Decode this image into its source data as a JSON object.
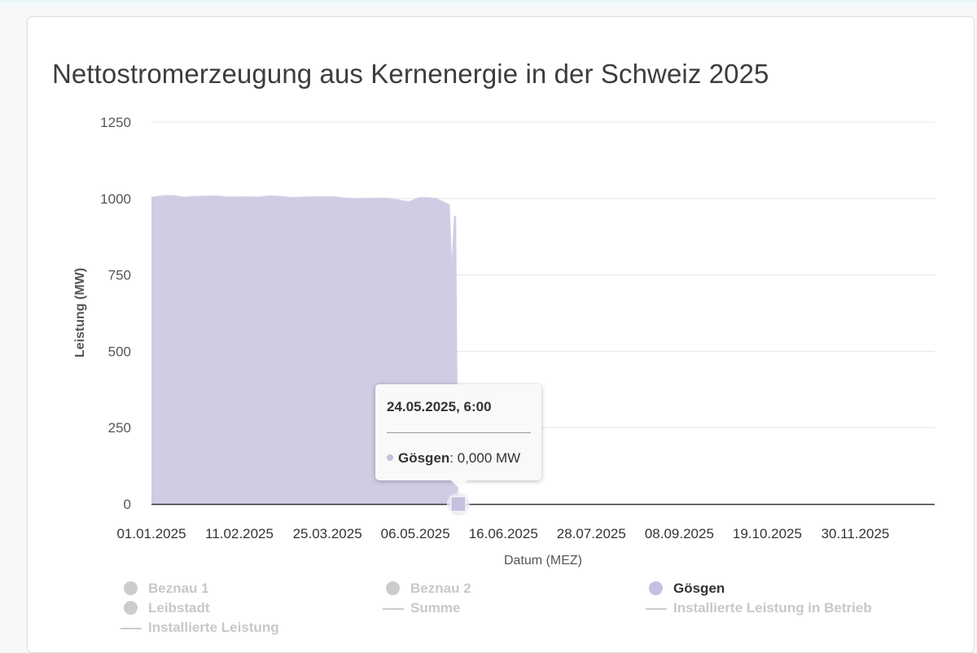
{
  "page": {
    "title": "Nettostromerzeugung aus Kernenergie in der Schweiz 2025"
  },
  "colors": {
    "goesgen": "#cfcce4",
    "goesgen_marker": "#c4c0de",
    "disabled": "#cccccc",
    "grid": "#e6e6e6",
    "axis": "#333333"
  },
  "chart_data": {
    "type": "area",
    "title": "Nettostromerzeugung aus Kernenergie in der Schweiz 2025",
    "xlabel": "Datum (MEZ)",
    "ylabel": "Leistung (MW)",
    "ylim": [
      0,
      1250
    ],
    "xlim": [
      "01.01.2025",
      "31.12.2025"
    ],
    "grid": true,
    "legend_position": "bottom",
    "y_ticks": [
      "0",
      "250",
      "500",
      "750",
      "1000",
      "1250"
    ],
    "x_ticks": [
      "01.01.2025",
      "11.02.2025",
      "25.03.2025",
      "06.05.2025",
      "16.06.2025",
      "28.07.2025",
      "08.09.2025",
      "19.10.2025",
      "30.11.2025"
    ],
    "series": [
      {
        "name": "Gösgen",
        "visible": true,
        "color": "#cfcce4",
        "x_day_of_year": [
          0,
          5,
          10,
          15,
          20,
          25,
          30,
          35,
          40,
          45,
          50,
          55,
          60,
          65,
          70,
          75,
          80,
          85,
          90,
          95,
          100,
          105,
          110,
          115,
          120,
          125,
          130,
          133,
          136,
          139,
          140,
          141,
          142,
          143,
          143.1
        ],
        "values": [
          1005,
          1008,
          1010,
          1007,
          1010,
          1009,
          1008,
          1005,
          1008,
          1009,
          1006,
          1008,
          1007,
          1006,
          1008,
          1007,
          1005,
          1006,
          1004,
          1003,
          1002,
          1000,
          1001,
          998,
          993,
          1005,
          1002,
          998,
          990,
          980,
          800,
          945,
          940,
          0,
          0
        ]
      },
      {
        "name": "Beznau 1",
        "visible": false
      },
      {
        "name": "Beznau 2",
        "visible": false
      },
      {
        "name": "Leibstadt",
        "visible": false
      },
      {
        "name": "Summe",
        "visible": false
      },
      {
        "name": "Installierte Leistung in Betrieb",
        "visible": false
      },
      {
        "name": "Installierte Leistung",
        "visible": false
      }
    ]
  },
  "tooltip": {
    "date": "24.05.2025, 6:00",
    "series": "Gösgen",
    "value": ": 0,000 MW"
  },
  "legend": {
    "items": [
      {
        "label": "Beznau 1",
        "symbol": "dot",
        "active": false
      },
      {
        "label": "Beznau 2",
        "symbol": "dot",
        "active": false
      },
      {
        "label": "Gösgen",
        "symbol": "dot",
        "active": true
      },
      {
        "label": "Leibstadt",
        "symbol": "dot",
        "active": false
      },
      {
        "label": "Summe",
        "symbol": "line",
        "active": false
      },
      {
        "label": "Installierte Leistung in Betrieb",
        "symbol": "line",
        "active": false
      },
      {
        "label": "Installierte Leistung",
        "symbol": "line",
        "active": false
      }
    ]
  }
}
